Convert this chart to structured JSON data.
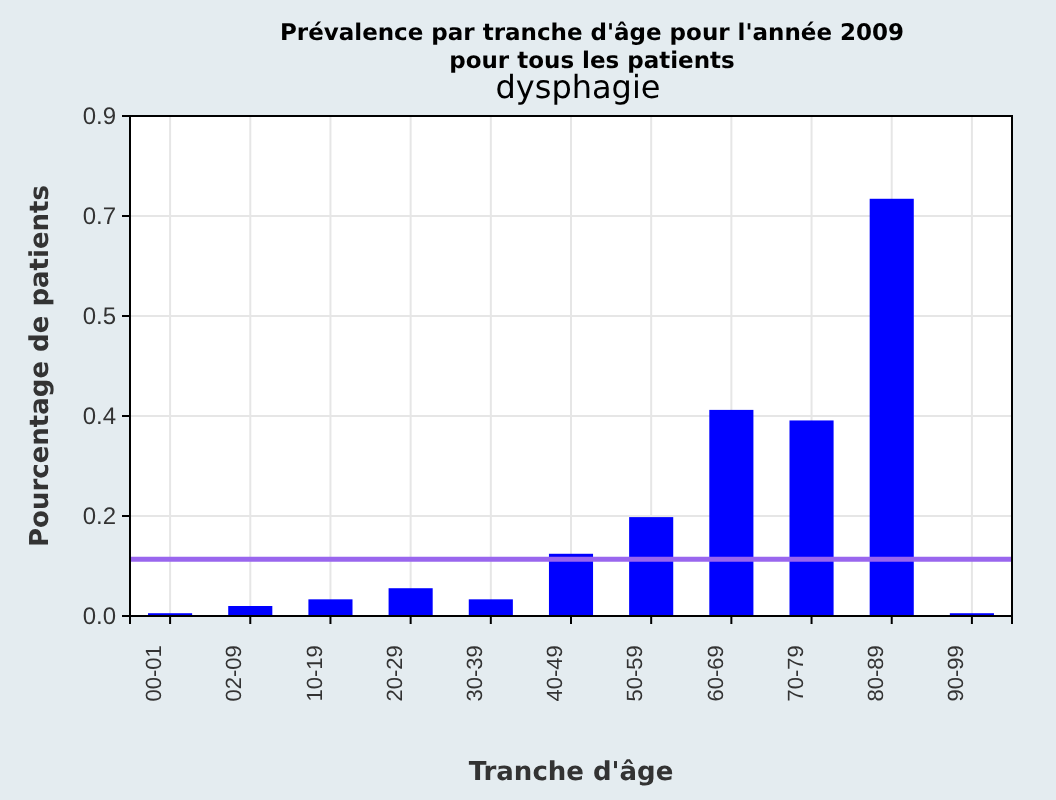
{
  "chart_data": {
    "type": "bar",
    "title": "Prévalence par tranche d'âge pour l'année 2009 pour tous les patients",
    "subtitle": "dysphagie",
    "xlabel": "Tranche d'âge",
    "ylabel": "Pourcentage de patients",
    "categories": [
      "00-01",
      "02-09",
      "10-19",
      "20-29",
      "30-39",
      "40-49",
      "50-59",
      "60-69",
      "70-79",
      "80-89",
      "90-99"
    ],
    "values": [
      0.005,
      0.018,
      0.03,
      0.05,
      0.03,
      0.112,
      0.178,
      0.371,
      0.352,
      0.751,
      0.005
    ],
    "color": "#0000ff",
    "ylim": [
      0,
      0.9
    ],
    "yticks": [
      {
        "value": 0,
        "label": "0.0"
      },
      {
        "value": 0.18,
        "label": "0.2"
      },
      {
        "value": 0.36,
        "label": "0.4"
      },
      {
        "value": 0.54,
        "label": "0.5"
      },
      {
        "value": 0.72,
        "label": "0.7"
      },
      {
        "value": 0.9,
        "label": "0.9"
      }
    ],
    "grid": true,
    "ref_lines": [
      {
        "axis": "y",
        "value": 0.102,
        "color": "#9966ee"
      }
    ]
  }
}
